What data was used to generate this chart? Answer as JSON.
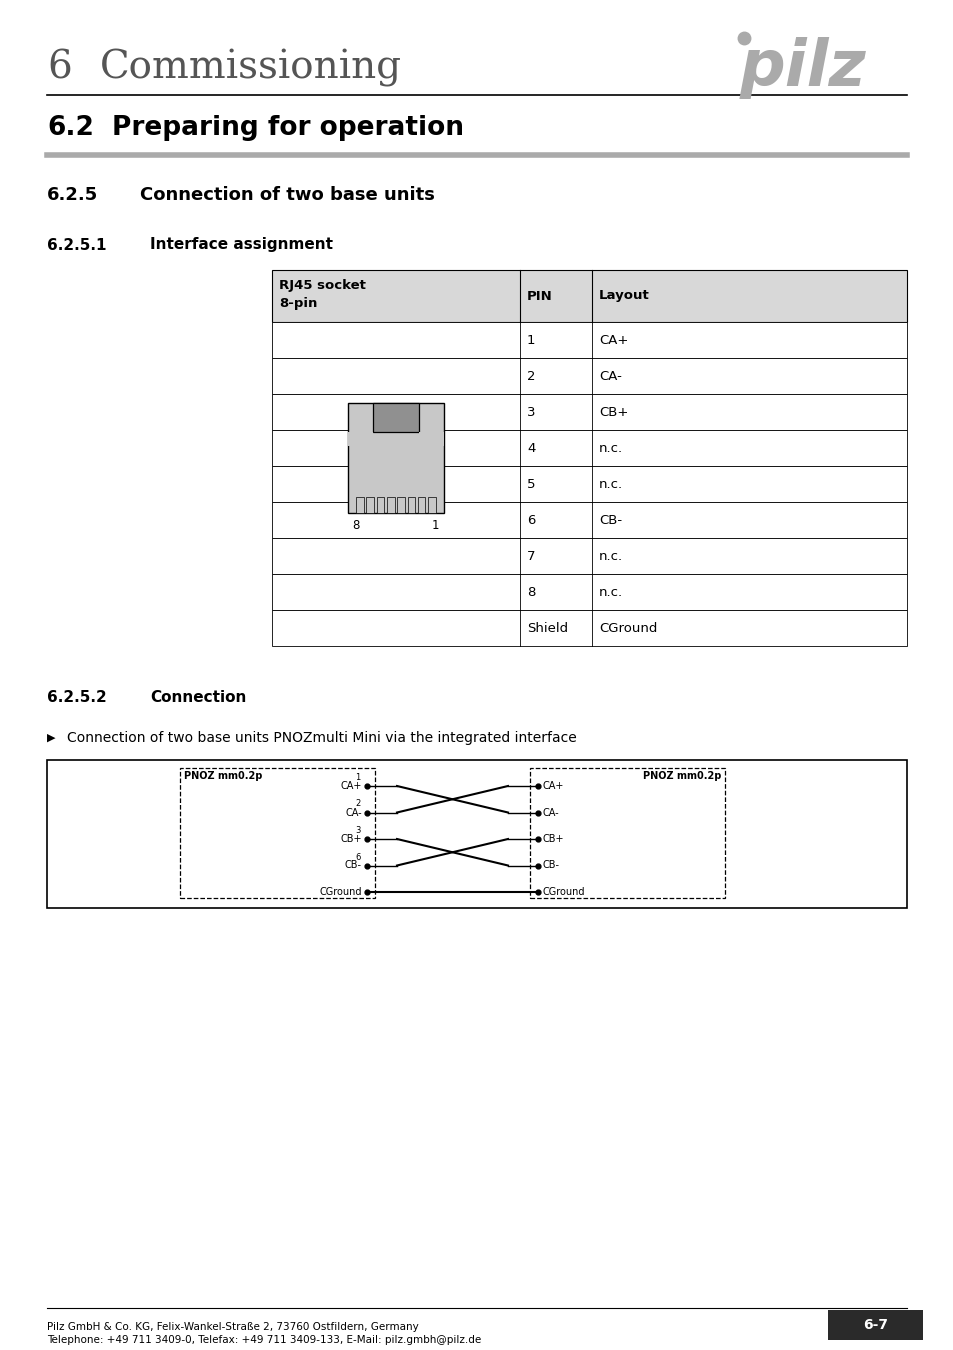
{
  "page_title_number": "6",
  "page_title_text": "Commissioning",
  "section_title": "6.2",
  "section_body": "Preparing for operation",
  "subsection_num": "6.2.5",
  "subsection_body": "Connection of two base units",
  "subsubsection_num": "6.2.5.1",
  "subsubsection_body": "Interface assignment",
  "table_rows": [
    [
      "1",
      "CA+"
    ],
    [
      "2",
      "CA-"
    ],
    [
      "3",
      "CB+"
    ],
    [
      "4",
      "n.c."
    ],
    [
      "5",
      "n.c."
    ],
    [
      "6",
      "CB-"
    ],
    [
      "7",
      "n.c."
    ],
    [
      "8",
      "n.c."
    ],
    [
      "Shield",
      "CGround"
    ]
  ],
  "conn_section_num": "6.2.5.2",
  "conn_section_body": "Connection",
  "bullet_text": "Connection of two base units PNOZmulti Mini via the integrated interface",
  "signals": [
    "CA+",
    "CA-",
    "CB+",
    "CB-",
    "CGround"
  ],
  "pin_numbers": [
    "1",
    "2",
    "3",
    "6"
  ],
  "footer_left1": "Pilz GmbH & Co. KG, Felix-Wankel-Straße 2, 73760 Ostfildern, Germany",
  "footer_left2": "Telephone: +49 711 3409-0, Telefax: +49 711 3409-133, E-Mail: pilz.gmbh@pilz.de",
  "footer_right": "6-7",
  "bg_color": "#ffffff",
  "table_header_bg": "#d8d8d8",
  "pilz_color": "#aaaaaa",
  "gray_line_color": "#aaaaaa",
  "chapter_color": "#555555"
}
